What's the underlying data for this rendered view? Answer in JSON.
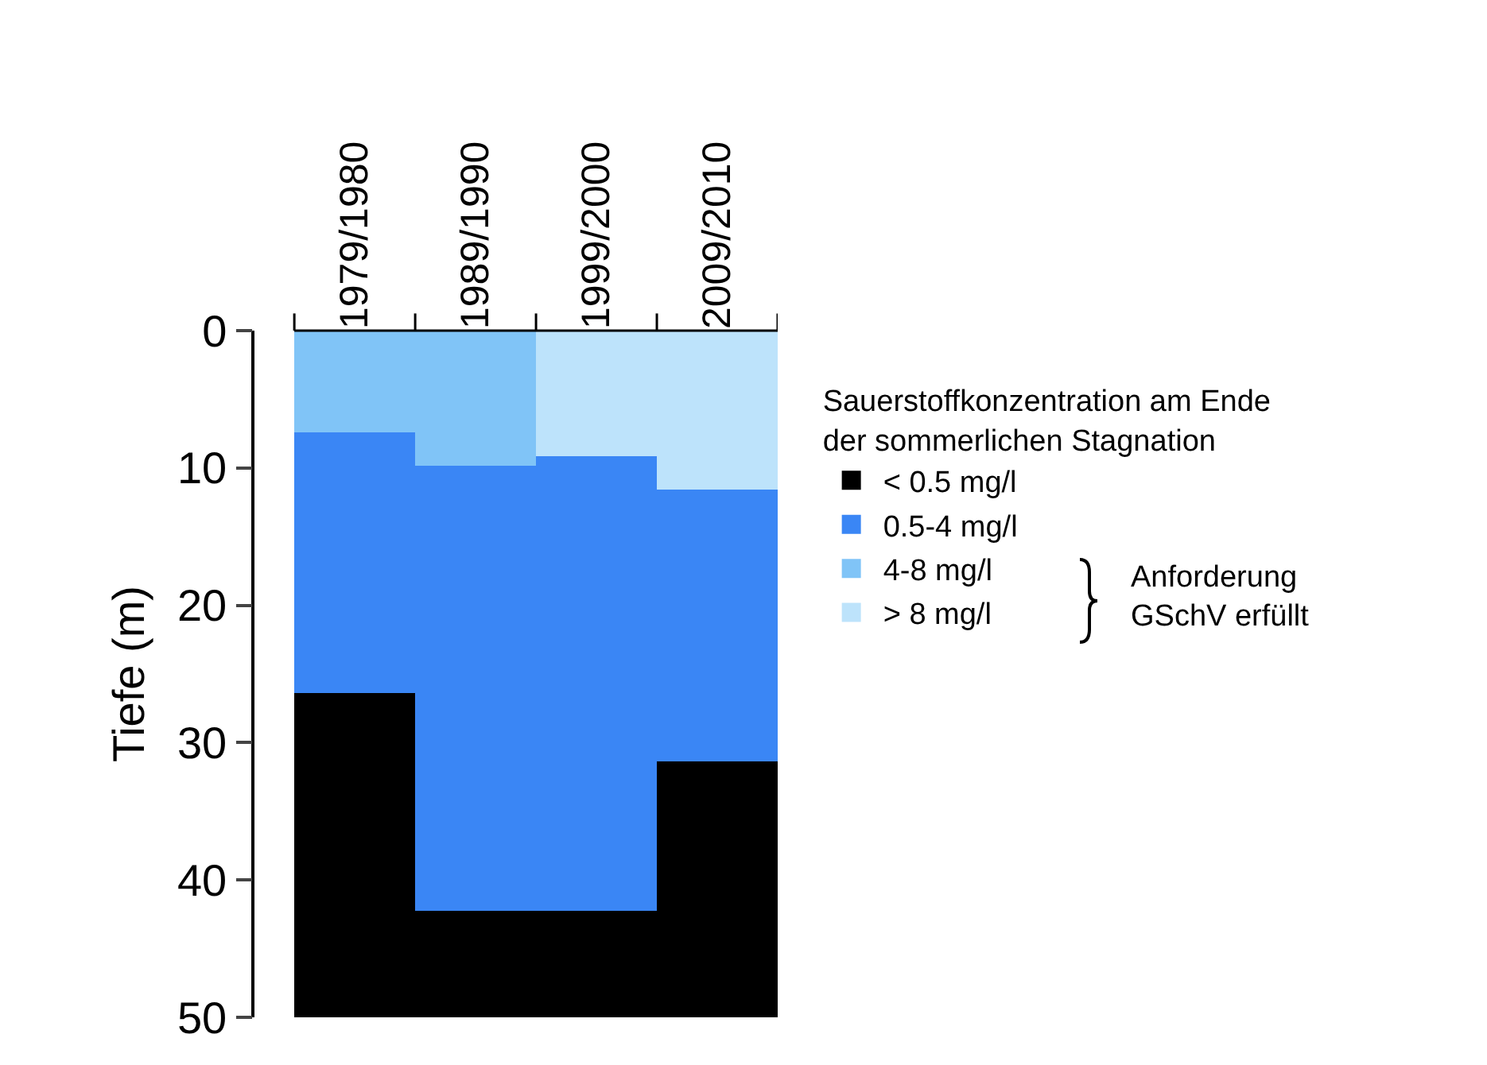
{
  "chart_data": {
    "type": "bar",
    "stacked": true,
    "categories": [
      "1979/1980",
      "1989/1990",
      "1999/2000",
      "2009/2010"
    ],
    "ylabel": "Tiefe (m)",
    "ylim": [
      50,
      0
    ],
    "yticks": [
      0,
      10,
      20,
      30,
      40,
      50
    ],
    "legend_title": "Sauerstoffkonzentration am Ende der sommerlichen Stagnation",
    "legend": "right",
    "grid": false,
    "annotations": [
      "Anforderung GSchV erfüllt"
    ],
    "series": [
      {
        "name": "> 8 mg/l",
        "color": "#bde3fb",
        "values": [
          null,
          null,
          9.1,
          11.6
        ]
      },
      {
        "name": "4-8 mg/l",
        "color": "#80c4f7",
        "values": [
          7.4,
          9.8,
          null,
          null
        ]
      },
      {
        "name": "0.5-4 mg/l",
        "color": "#3a86f5",
        "values": [
          19.0,
          32.5,
          33.2,
          19.8
        ]
      },
      {
        "name": "< 0.5 mg/l",
        "color": "#000000",
        "values": [
          23.6,
          7.7,
          7.7,
          18.6
        ]
      }
    ]
  }
}
